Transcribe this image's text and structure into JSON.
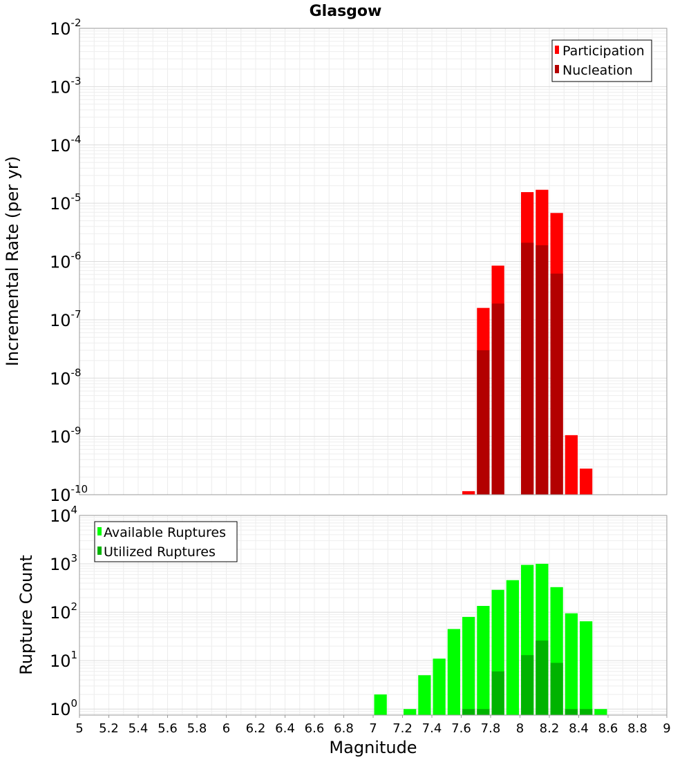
{
  "chart_data": [
    {
      "type": "bar",
      "title": "Glasgow",
      "ylabel": "Incremental Rate (per yr)",
      "xlabel": "",
      "yscale": "log",
      "ylim": [
        1e-10,
        0.01
      ],
      "xlim": [
        5,
        9
      ],
      "bin_width": 0.1,
      "legend_position": "top-right",
      "y_ticks": [
        {
          "base": "10",
          "exp": "-10"
        },
        {
          "base": "10",
          "exp": "-9"
        },
        {
          "base": "10",
          "exp": "-8"
        },
        {
          "base": "10",
          "exp": "-7"
        },
        {
          "base": "10",
          "exp": "-6"
        },
        {
          "base": "10",
          "exp": "-5"
        },
        {
          "base": "10",
          "exp": "-4"
        },
        {
          "base": "10",
          "exp": "-3"
        },
        {
          "base": "10",
          "exp": "-2"
        }
      ],
      "series": [
        {
          "name": "Participation",
          "color": "#ff0000",
          "points": [
            {
              "x": 7.65,
              "y": 1.15e-10
            },
            {
              "x": 7.75,
              "y": 1.6e-07
            },
            {
              "x": 7.85,
              "y": 8.5e-07
            },
            {
              "x": 8.05,
              "y": 1.55e-05
            },
            {
              "x": 8.15,
              "y": 1.7e-05
            },
            {
              "x": 8.25,
              "y": 6.8e-06
            },
            {
              "x": 8.35,
              "y": 1.05e-09
            },
            {
              "x": 8.45,
              "y": 2.8e-10
            }
          ]
        },
        {
          "name": "Nucleation",
          "color": "#b30000",
          "points": [
            {
              "x": 7.75,
              "y": 3e-08
            },
            {
              "x": 7.85,
              "y": 1.9e-07
            },
            {
              "x": 8.05,
              "y": 2.1e-06
            },
            {
              "x": 8.15,
              "y": 1.9e-06
            },
            {
              "x": 8.25,
              "y": 6.2e-07
            }
          ]
        }
      ]
    },
    {
      "type": "bar",
      "title": "",
      "ylabel": "Rupture Count",
      "xlabel": "Magnitude",
      "yscale": "log",
      "ylim": [
        0.75,
        10000
      ],
      "xlim": [
        5,
        9
      ],
      "bin_width": 0.1,
      "legend_position": "top-left",
      "x_ticks": [
        "5",
        "5.2",
        "5.4",
        "5.6",
        "5.8",
        "6",
        "6.2",
        "6.4",
        "6.6",
        "6.8",
        "7",
        "7.2",
        "7.4",
        "7.6",
        "7.8",
        "8",
        "8.2",
        "8.4",
        "8.6",
        "8.8",
        "9"
      ],
      "y_ticks": [
        {
          "base": "10",
          "exp": "0"
        },
        {
          "base": "10",
          "exp": "1"
        },
        {
          "base": "10",
          "exp": "2"
        },
        {
          "base": "10",
          "exp": "3"
        },
        {
          "base": "10",
          "exp": "4"
        }
      ],
      "series": [
        {
          "name": "Available Ruptures",
          "color": "#00ff00",
          "points": [
            {
              "x": 7.05,
              "y": 2
            },
            {
              "x": 7.25,
              "y": 1
            },
            {
              "x": 7.35,
              "y": 5
            },
            {
              "x": 7.45,
              "y": 11
            },
            {
              "x": 7.55,
              "y": 45
            },
            {
              "x": 7.65,
              "y": 80
            },
            {
              "x": 7.75,
              "y": 135
            },
            {
              "x": 7.85,
              "y": 290
            },
            {
              "x": 7.95,
              "y": 460
            },
            {
              "x": 8.05,
              "y": 950
            },
            {
              "x": 8.15,
              "y": 1000
            },
            {
              "x": 8.25,
              "y": 330
            },
            {
              "x": 8.35,
              "y": 95
            },
            {
              "x": 8.45,
              "y": 65
            },
            {
              "x": 8.55,
              "y": 1
            }
          ]
        },
        {
          "name": "Utilized Ruptures",
          "color": "#00b300",
          "points": [
            {
              "x": 7.65,
              "y": 1
            },
            {
              "x": 7.75,
              "y": 1
            },
            {
              "x": 7.85,
              "y": 6
            },
            {
              "x": 8.05,
              "y": 13
            },
            {
              "x": 8.15,
              "y": 26
            },
            {
              "x": 8.25,
              "y": 9
            },
            {
              "x": 8.35,
              "y": 1
            },
            {
              "x": 8.45,
              "y": 1
            }
          ]
        }
      ]
    }
  ]
}
